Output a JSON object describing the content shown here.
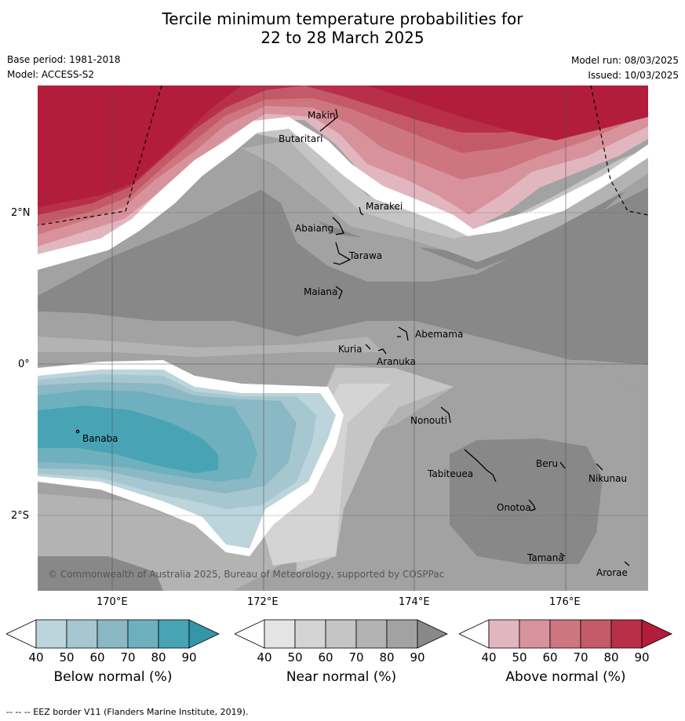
{
  "title_line1": "Tercile minimum temperature probabilities for",
  "title_line2": "22 to 28 March 2025",
  "base_period": "Base period: 1981-2018",
  "model": "Model: ACCESS-S2",
  "model_run": "Model run: 08/03/2025",
  "issued": "Issued: 10/03/2025",
  "lat_labels": [
    "2°N",
    "0°",
    "2°S"
  ],
  "lon_labels": [
    "170°E",
    "172°E",
    "174°E",
    "176°E"
  ],
  "copyright": "© Commonwealth of Australia 2025, Bureau of Meteorology, supported by COSPPac",
  "footer": "--  --  -- EEZ border V11 (Flanders Marine Institute, 2019).",
  "places": [
    "Makin",
    "Butaritari",
    "Marakei",
    "Abaiang",
    "Tarawa",
    "Maiana",
    "Abemama",
    "Kuria",
    "Aranuka",
    "Nonouti",
    "Banaba",
    "Beru",
    "Tabiteuea",
    "Nikunau",
    "Onotoa",
    "Tamana",
    "Arorae"
  ],
  "colorbars": [
    {
      "title": "Below normal (%)",
      "ticks": [
        "40",
        "50",
        "60",
        "70",
        "80",
        "90"
      ],
      "colors": [
        "#bcd4dc",
        "#a6c7cf",
        "#8bb8c5",
        "#6eb0bd",
        "#48a4b4",
        "#3596a8"
      ]
    },
    {
      "title": "Near normal (%)",
      "ticks": [
        "40",
        "50",
        "60",
        "70",
        "80",
        "90"
      ],
      "colors": [
        "#e4e4e4",
        "#d4d4d4",
        "#c5c5c5",
        "#b3b3b3",
        "#a2a2a2",
        "#888888"
      ]
    },
    {
      "title": "Above normal (%)",
      "ticks": [
        "40",
        "50",
        "60",
        "70",
        "80",
        "90"
      ],
      "colors": [
        "#e2b6bf",
        "#d8929c",
        "#ce7680",
        "#c45a68",
        "#b83048",
        "#b21d3c"
      ]
    }
  ]
}
